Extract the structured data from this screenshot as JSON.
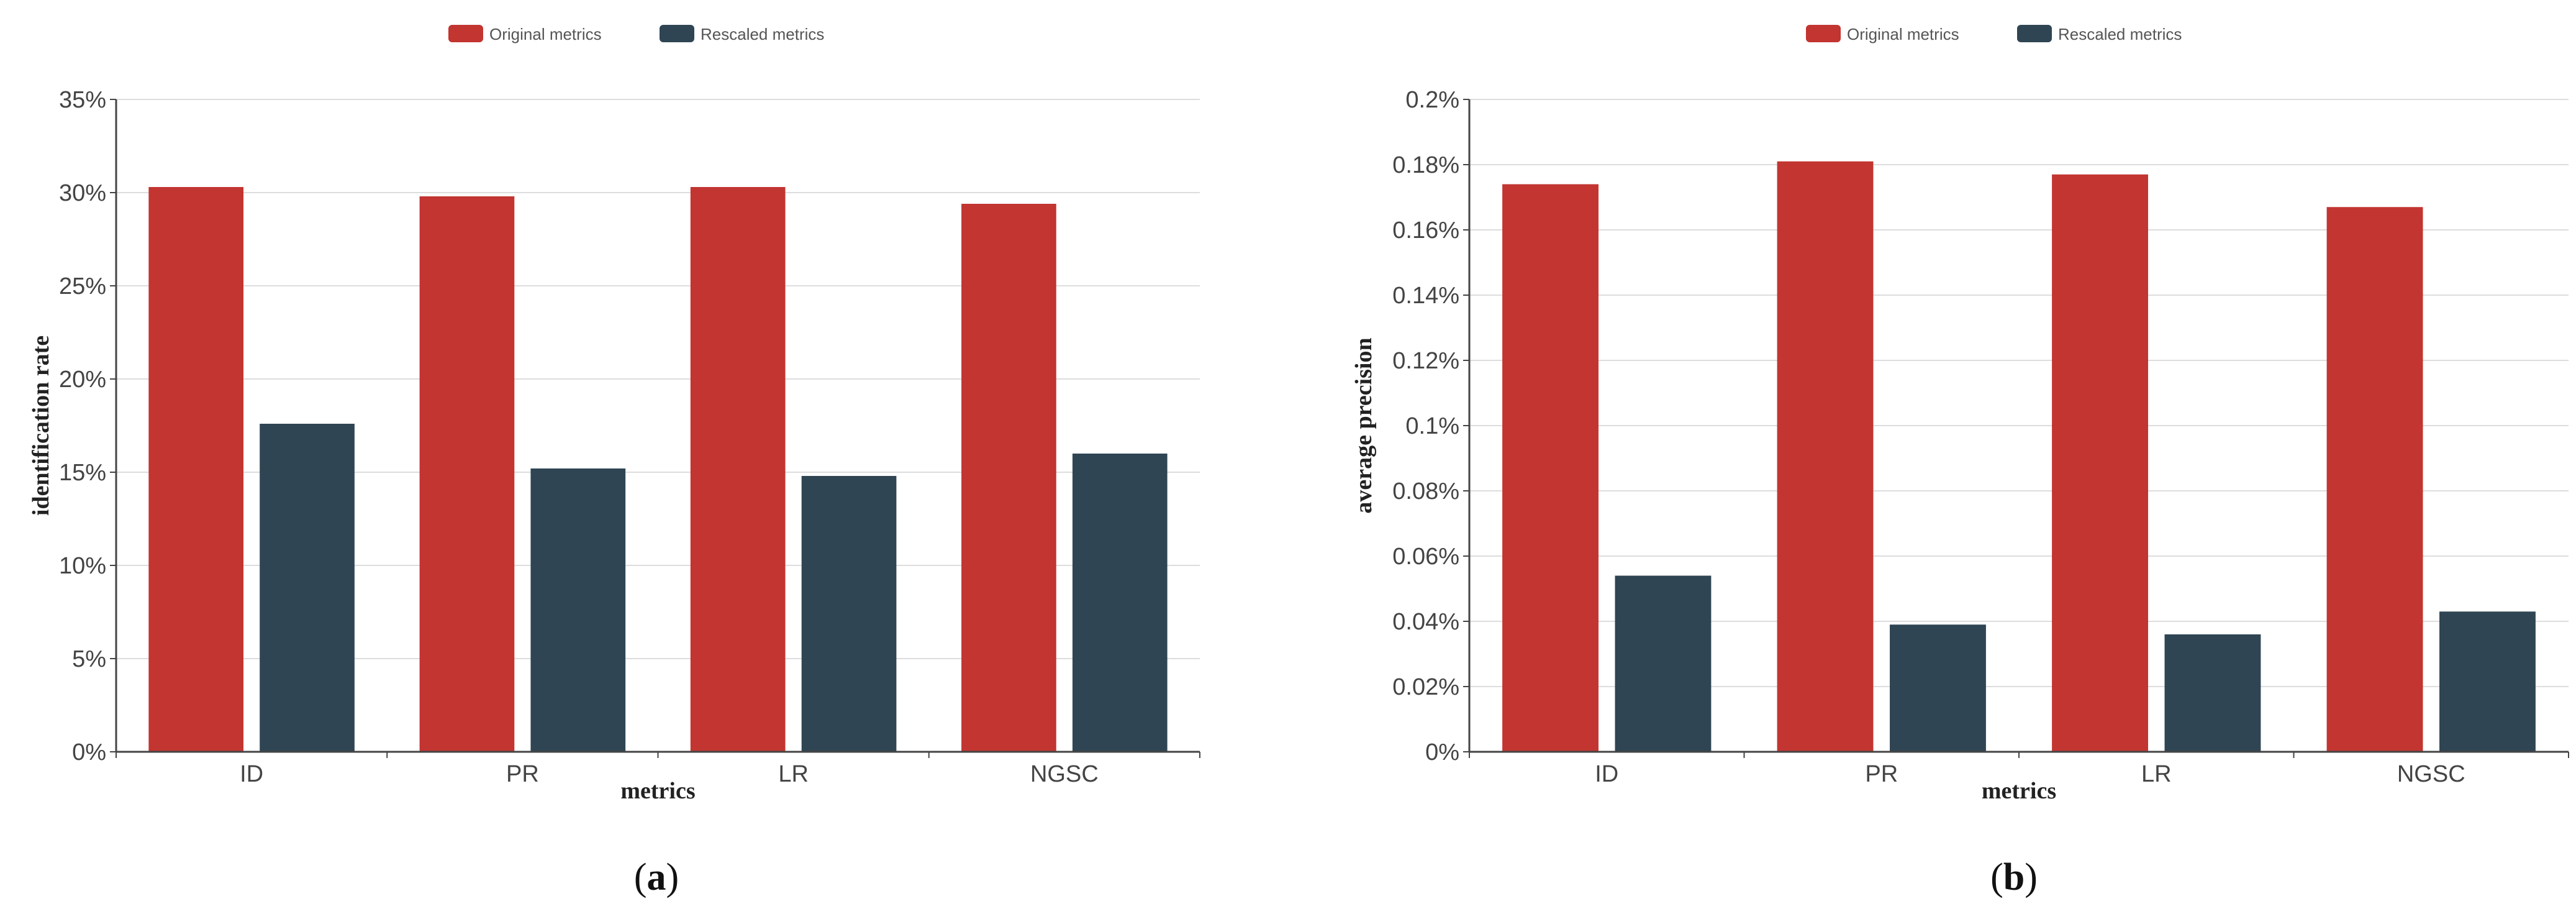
{
  "chart_data": [
    {
      "type": "bar",
      "panel_label": "a",
      "categories": [
        "ID",
        "PR",
        "LR",
        "NGSC"
      ],
      "series": [
        {
          "name": "Original metrics",
          "color": "#c23531",
          "values": [
            30.3,
            29.8,
            30.3,
            29.4
          ]
        },
        {
          "name": "Rescaled metrics",
          "color": "#2f4554",
          "values": [
            17.6,
            15.2,
            14.8,
            16.0
          ]
        }
      ],
      "xlabel": "metrics",
      "ylabel": "identification rate",
      "ylim": [
        0,
        35
      ],
      "yticks": [
        "0%",
        "5%",
        "10%",
        "15%",
        "20%",
        "25%",
        "30%",
        "35%"
      ],
      "ytick_values": [
        0,
        5,
        10,
        15,
        20,
        25,
        30,
        35
      ],
      "y_unit": "%",
      "grid": true,
      "legend_position": "top-center"
    },
    {
      "type": "bar",
      "panel_label": "b",
      "categories": [
        "ID",
        "PR",
        "LR",
        "NGSC"
      ],
      "series": [
        {
          "name": "Original metrics",
          "color": "#c23531",
          "values": [
            0.174,
            0.181,
            0.177,
            0.167
          ]
        },
        {
          "name": "Rescaled metrics",
          "color": "#2f4554",
          "values": [
            0.054,
            0.039,
            0.036,
            0.043
          ]
        }
      ],
      "xlabel": "metrics",
      "ylabel": "average precision",
      "ylim": [
        0,
        0.2
      ],
      "yticks": [
        "0%",
        "0.02%",
        "0.04%",
        "0.06%",
        "0.08%",
        "0.1%",
        "0.12%",
        "0.14%",
        "0.16%",
        "0.18%",
        "0.2%"
      ],
      "ytick_values": [
        0,
        0.02,
        0.04,
        0.06,
        0.08,
        0.1,
        0.12,
        0.14,
        0.16,
        0.18,
        0.2
      ],
      "y_unit": "%",
      "grid": true,
      "legend_position": "top-center"
    }
  ]
}
